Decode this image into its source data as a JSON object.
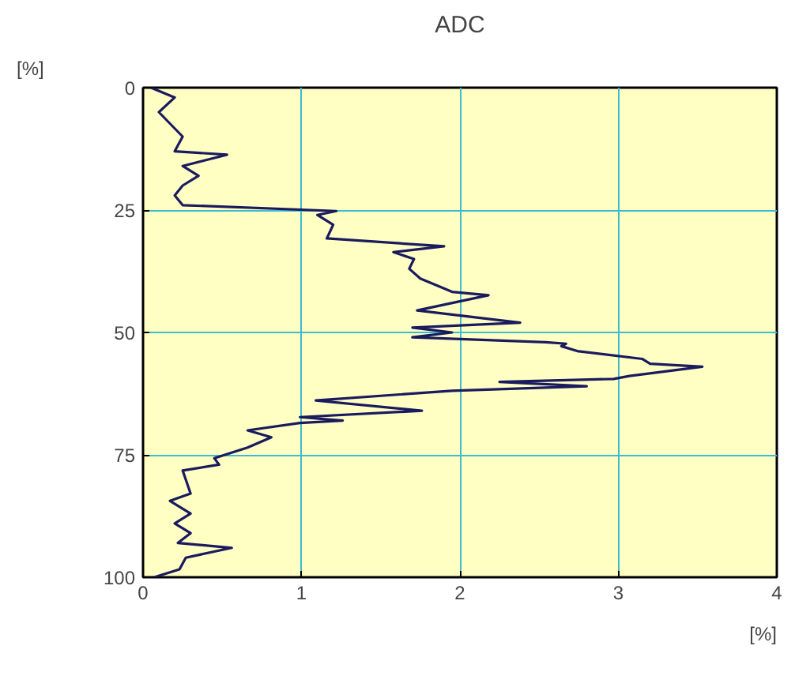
{
  "chart_data": {
    "type": "line",
    "title": "ADC",
    "xlabel": "[%]",
    "ylabel": "[%]",
    "xlim": [
      0,
      4
    ],
    "ylim": [
      100,
      0
    ],
    "xticks": [
      0,
      1,
      2,
      3,
      4
    ],
    "yticks": [
      0,
      25,
      50,
      75,
      100
    ],
    "grid": true,
    "marker": "none",
    "line_style": "solid",
    "series": [
      {
        "color": "#1a1a5e",
        "x": [
          0.05,
          0.2,
          0.1,
          0.25,
          0.2,
          0.53,
          0.25,
          0.35,
          0.25,
          0.2,
          0.25,
          1.22,
          1.1,
          1.2,
          1.16,
          1.9,
          1.58,
          1.71,
          1.68,
          1.75,
          1.95,
          2.18,
          1.73,
          2.38,
          1.7,
          1.95,
          1.7,
          2.54,
          2.67,
          2.64,
          2.74,
          3.15,
          3.2,
          3.53,
          3.07,
          2.97,
          2.25,
          2.8,
          1.95,
          1.09,
          1.76,
          0.99,
          1.26,
          0.99,
          0.66,
          0.81,
          0.66,
          0.45,
          0.48,
          0.25,
          0.3,
          0.17,
          0.3,
          0.2,
          0.3,
          0.22,
          0.56,
          0.27,
          0.23,
          0.07
        ],
        "values": [
          0,
          2,
          5,
          10,
          13,
          13.7,
          16,
          18,
          20,
          22,
          24,
          25.2,
          26,
          28,
          30.8,
          32.4,
          33.6,
          35,
          37,
          39,
          41.7,
          42.4,
          45.5,
          48,
          49,
          50,
          51,
          52,
          52.3,
          52.8,
          53.8,
          55.4,
          56.4,
          57,
          58.9,
          59.5,
          60.1,
          61,
          61.9,
          63.9,
          66,
          67.3,
          68,
          68.5,
          70,
          71.4,
          73.5,
          75.7,
          77,
          78.2,
          82.9,
          84.4,
          87,
          89,
          91,
          93,
          94,
          96,
          98.4,
          100
        ]
      }
    ]
  }
}
